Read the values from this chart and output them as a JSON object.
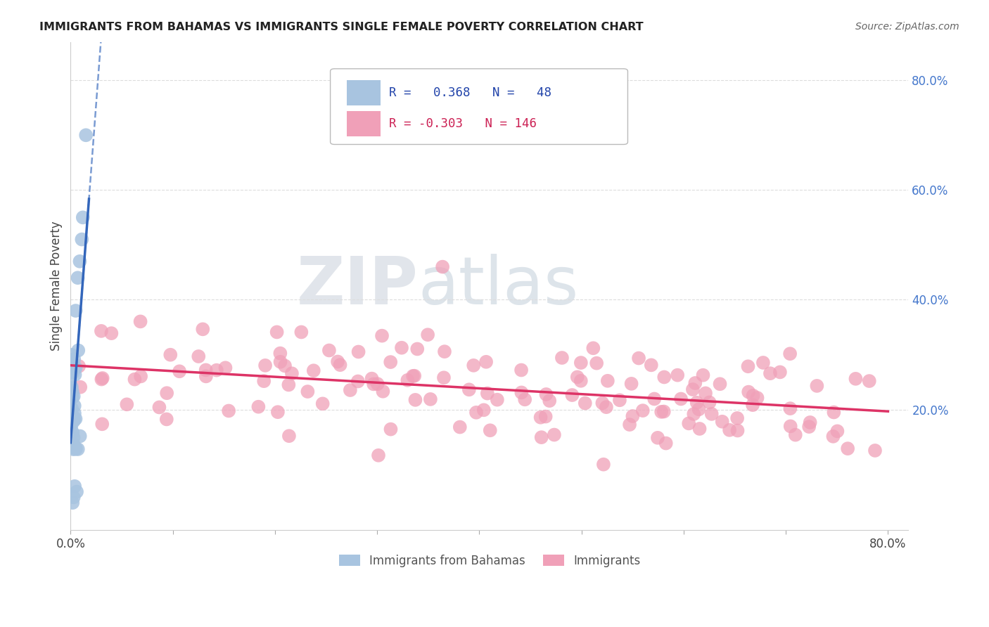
{
  "title": "IMMIGRANTS FROM BAHAMAS VS IMMIGRANTS SINGLE FEMALE POVERTY CORRELATION CHART",
  "source": "Source: ZipAtlas.com",
  "ylabel": "Single Female Poverty",
  "legend_blue_label": "Immigrants from Bahamas",
  "legend_pink_label": "Immigrants",
  "blue_R": "0.368",
  "blue_N": "48",
  "pink_R": "-0.303",
  "pink_N": "146",
  "xlim": [
    0.0,
    0.82
  ],
  "ylim": [
    -0.02,
    0.87
  ],
  "right_yticks": [
    0.2,
    0.4,
    0.6,
    0.8
  ],
  "right_ytick_labels": [
    "20.0%",
    "40.0%",
    "60.0%",
    "80.0%"
  ],
  "blue_color": "#a8c4e0",
  "pink_color": "#f0a0b8",
  "blue_line_color": "#3366bb",
  "pink_line_color": "#dd3366",
  "bg_color": "#ffffff",
  "grid_color": "#dddddd",
  "title_color": "#222222",
  "right_axis_color": "#4477cc",
  "blue_seed": 10,
  "pink_seed": 20
}
